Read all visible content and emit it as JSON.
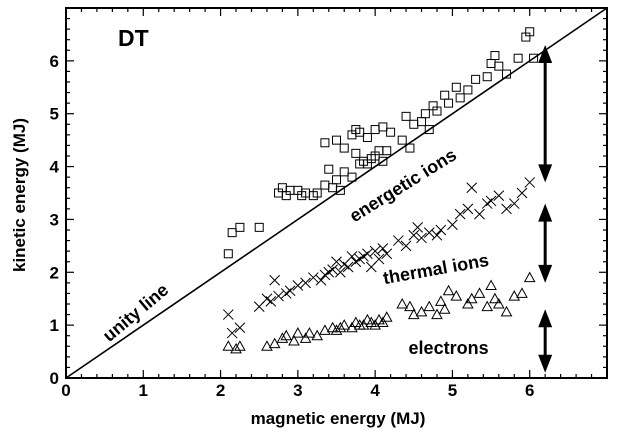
{
  "chart_data": {
    "type": "scatter",
    "panel_label": "DT",
    "xlabel": "magnetic energy (MJ)",
    "ylabel": "kinetic energy (MJ)",
    "xlim": [
      0,
      7
    ],
    "ylim": [
      0,
      7
    ],
    "x_ticks": [
      0,
      1,
      2,
      3,
      4,
      5,
      6
    ],
    "y_ticks": [
      0,
      1,
      2,
      3,
      4,
      5,
      6
    ],
    "grid": false,
    "reference_line": {
      "label": "unity line",
      "from": [
        0,
        0
      ],
      "to": [
        7,
        7
      ]
    },
    "series": [
      {
        "name": "energetic ions",
        "marker": "square",
        "points": [
          [
            2.1,
            2.35
          ],
          [
            2.15,
            2.75
          ],
          [
            2.25,
            2.85
          ],
          [
            2.5,
            2.85
          ],
          [
            2.75,
            3.5
          ],
          [
            2.8,
            3.6
          ],
          [
            2.85,
            3.45
          ],
          [
            2.9,
            3.55
          ],
          [
            3.0,
            3.55
          ],
          [
            3.05,
            3.45
          ],
          [
            3.1,
            3.5
          ],
          [
            3.2,
            3.45
          ],
          [
            3.25,
            3.5
          ],
          [
            3.35,
            3.65
          ],
          [
            3.4,
            3.95
          ],
          [
            3.45,
            3.6
          ],
          [
            3.5,
            3.75
          ],
          [
            3.55,
            3.55
          ],
          [
            3.6,
            3.9
          ],
          [
            3.7,
            3.8
          ],
          [
            3.75,
            4.25
          ],
          [
            3.8,
            4.05
          ],
          [
            3.85,
            4.1
          ],
          [
            3.9,
            4.05
          ],
          [
            3.95,
            4.15
          ],
          [
            4.0,
            4.2
          ],
          [
            4.05,
            4.3
          ],
          [
            4.1,
            4.1
          ],
          [
            4.15,
            4.3
          ],
          [
            3.35,
            4.45
          ],
          [
            3.5,
            4.5
          ],
          [
            3.6,
            4.35
          ],
          [
            3.7,
            4.6
          ],
          [
            3.75,
            4.7
          ],
          [
            3.8,
            4.65
          ],
          [
            3.9,
            4.55
          ],
          [
            4.0,
            4.7
          ],
          [
            4.1,
            4.75
          ],
          [
            4.2,
            4.65
          ],
          [
            4.35,
            4.5
          ],
          [
            4.4,
            4.95
          ],
          [
            4.45,
            4.35
          ],
          [
            4.5,
            4.8
          ],
          [
            4.6,
            4.85
          ],
          [
            4.65,
            5.0
          ],
          [
            4.7,
            4.7
          ],
          [
            4.75,
            5.15
          ],
          [
            4.8,
            5.05
          ],
          [
            4.9,
            5.35
          ],
          [
            4.95,
            5.2
          ],
          [
            5.05,
            5.5
          ],
          [
            5.1,
            5.3
          ],
          [
            5.2,
            5.45
          ],
          [
            5.3,
            5.65
          ],
          [
            5.45,
            5.7
          ],
          [
            5.5,
            5.95
          ],
          [
            5.55,
            6.1
          ],
          [
            5.6,
            5.9
          ],
          [
            5.7,
            5.75
          ],
          [
            5.85,
            6.05
          ],
          [
            5.95,
            6.45
          ],
          [
            6.0,
            6.55
          ],
          [
            6.05,
            6.05
          ]
        ]
      },
      {
        "name": "thermal ions",
        "marker": "cross",
        "points": [
          [
            2.1,
            1.2
          ],
          [
            2.15,
            0.85
          ],
          [
            2.25,
            0.95
          ],
          [
            2.5,
            1.35
          ],
          [
            2.6,
            1.5
          ],
          [
            2.65,
            1.45
          ],
          [
            2.7,
            1.85
          ],
          [
            2.75,
            1.55
          ],
          [
            2.85,
            1.6
          ],
          [
            2.9,
            1.65
          ],
          [
            3.0,
            1.75
          ],
          [
            3.1,
            1.8
          ],
          [
            3.2,
            1.9
          ],
          [
            3.3,
            1.85
          ],
          [
            3.35,
            1.95
          ],
          [
            3.4,
            2.0
          ],
          [
            3.45,
            2.05
          ],
          [
            3.5,
            2.2
          ],
          [
            3.55,
            2.0
          ],
          [
            3.6,
            2.15
          ],
          [
            3.65,
            2.1
          ],
          [
            3.7,
            2.3
          ],
          [
            3.75,
            2.2
          ],
          [
            3.8,
            2.25
          ],
          [
            3.85,
            2.3
          ],
          [
            3.9,
            2.35
          ],
          [
            3.95,
            2.1
          ],
          [
            4.0,
            2.4
          ],
          [
            4.05,
            2.25
          ],
          [
            4.1,
            2.45
          ],
          [
            4.15,
            2.35
          ],
          [
            4.3,
            2.6
          ],
          [
            4.4,
            2.5
          ],
          [
            4.5,
            2.7
          ],
          [
            4.55,
            2.85
          ],
          [
            4.6,
            2.65
          ],
          [
            4.7,
            2.75
          ],
          [
            4.8,
            2.7
          ],
          [
            4.85,
            2.8
          ],
          [
            5.0,
            2.9
          ],
          [
            5.1,
            3.1
          ],
          [
            5.2,
            3.2
          ],
          [
            5.25,
            3.6
          ],
          [
            5.35,
            3.1
          ],
          [
            5.45,
            3.3
          ],
          [
            5.5,
            3.35
          ],
          [
            5.6,
            3.45
          ],
          [
            5.7,
            3.2
          ],
          [
            5.8,
            3.3
          ],
          [
            5.9,
            3.5
          ],
          [
            6.0,
            3.7
          ]
        ]
      },
      {
        "name": "electrons",
        "marker": "triangle",
        "points": [
          [
            2.1,
            0.6
          ],
          [
            2.2,
            0.55
          ],
          [
            2.25,
            0.6
          ],
          [
            2.6,
            0.6
          ],
          [
            2.7,
            0.65
          ],
          [
            2.8,
            0.75
          ],
          [
            2.85,
            0.8
          ],
          [
            2.95,
            0.7
          ],
          [
            3.0,
            0.85
          ],
          [
            3.1,
            0.75
          ],
          [
            3.15,
            0.85
          ],
          [
            3.25,
            0.8
          ],
          [
            3.35,
            0.9
          ],
          [
            3.45,
            0.95
          ],
          [
            3.5,
            0.9
          ],
          [
            3.55,
            0.95
          ],
          [
            3.6,
            1.0
          ],
          [
            3.7,
            0.95
          ],
          [
            3.75,
            1.05
          ],
          [
            3.8,
            1.0
          ],
          [
            3.85,
            1.0
          ],
          [
            3.9,
            1.1
          ],
          [
            3.95,
            1.05
          ],
          [
            4.0,
            1.0
          ],
          [
            4.05,
            1.1
          ],
          [
            4.1,
            1.05
          ],
          [
            4.15,
            1.15
          ],
          [
            4.35,
            1.4
          ],
          [
            4.45,
            1.35
          ],
          [
            4.5,
            1.2
          ],
          [
            4.6,
            1.25
          ],
          [
            4.7,
            1.35
          ],
          [
            4.8,
            1.2
          ],
          [
            4.85,
            1.45
          ],
          [
            4.9,
            1.3
          ],
          [
            4.95,
            1.65
          ],
          [
            5.05,
            1.55
          ],
          [
            5.2,
            1.4
          ],
          [
            5.25,
            1.5
          ],
          [
            5.35,
            1.6
          ],
          [
            5.45,
            1.35
          ],
          [
            5.5,
            1.75
          ],
          [
            5.55,
            1.5
          ],
          [
            5.6,
            1.4
          ],
          [
            5.7,
            1.25
          ],
          [
            5.8,
            1.55
          ],
          [
            5.9,
            1.6
          ],
          [
            6.0,
            1.9
          ]
        ]
      }
    ],
    "annotations": [
      {
        "text": "unity line",
        "x": 0.95,
        "y": 1.15,
        "angle": -40
      },
      {
        "text": "energetic ions",
        "x": 4.4,
        "y": 3.55,
        "angle": -32
      },
      {
        "text": "thermal ions",
        "x": 4.8,
        "y": 1.95,
        "angle": -10
      },
      {
        "text": "electrons",
        "x": 4.95,
        "y": 0.45,
        "angle": 0
      }
    ],
    "arrows": [
      {
        "from": 6.3,
        "to": 3.7,
        "at": 6.2
      },
      {
        "from": 3.3,
        "to": 1.8,
        "at": 6.2
      },
      {
        "from": 1.3,
        "to": 0.1,
        "at": 6.2
      }
    ]
  }
}
